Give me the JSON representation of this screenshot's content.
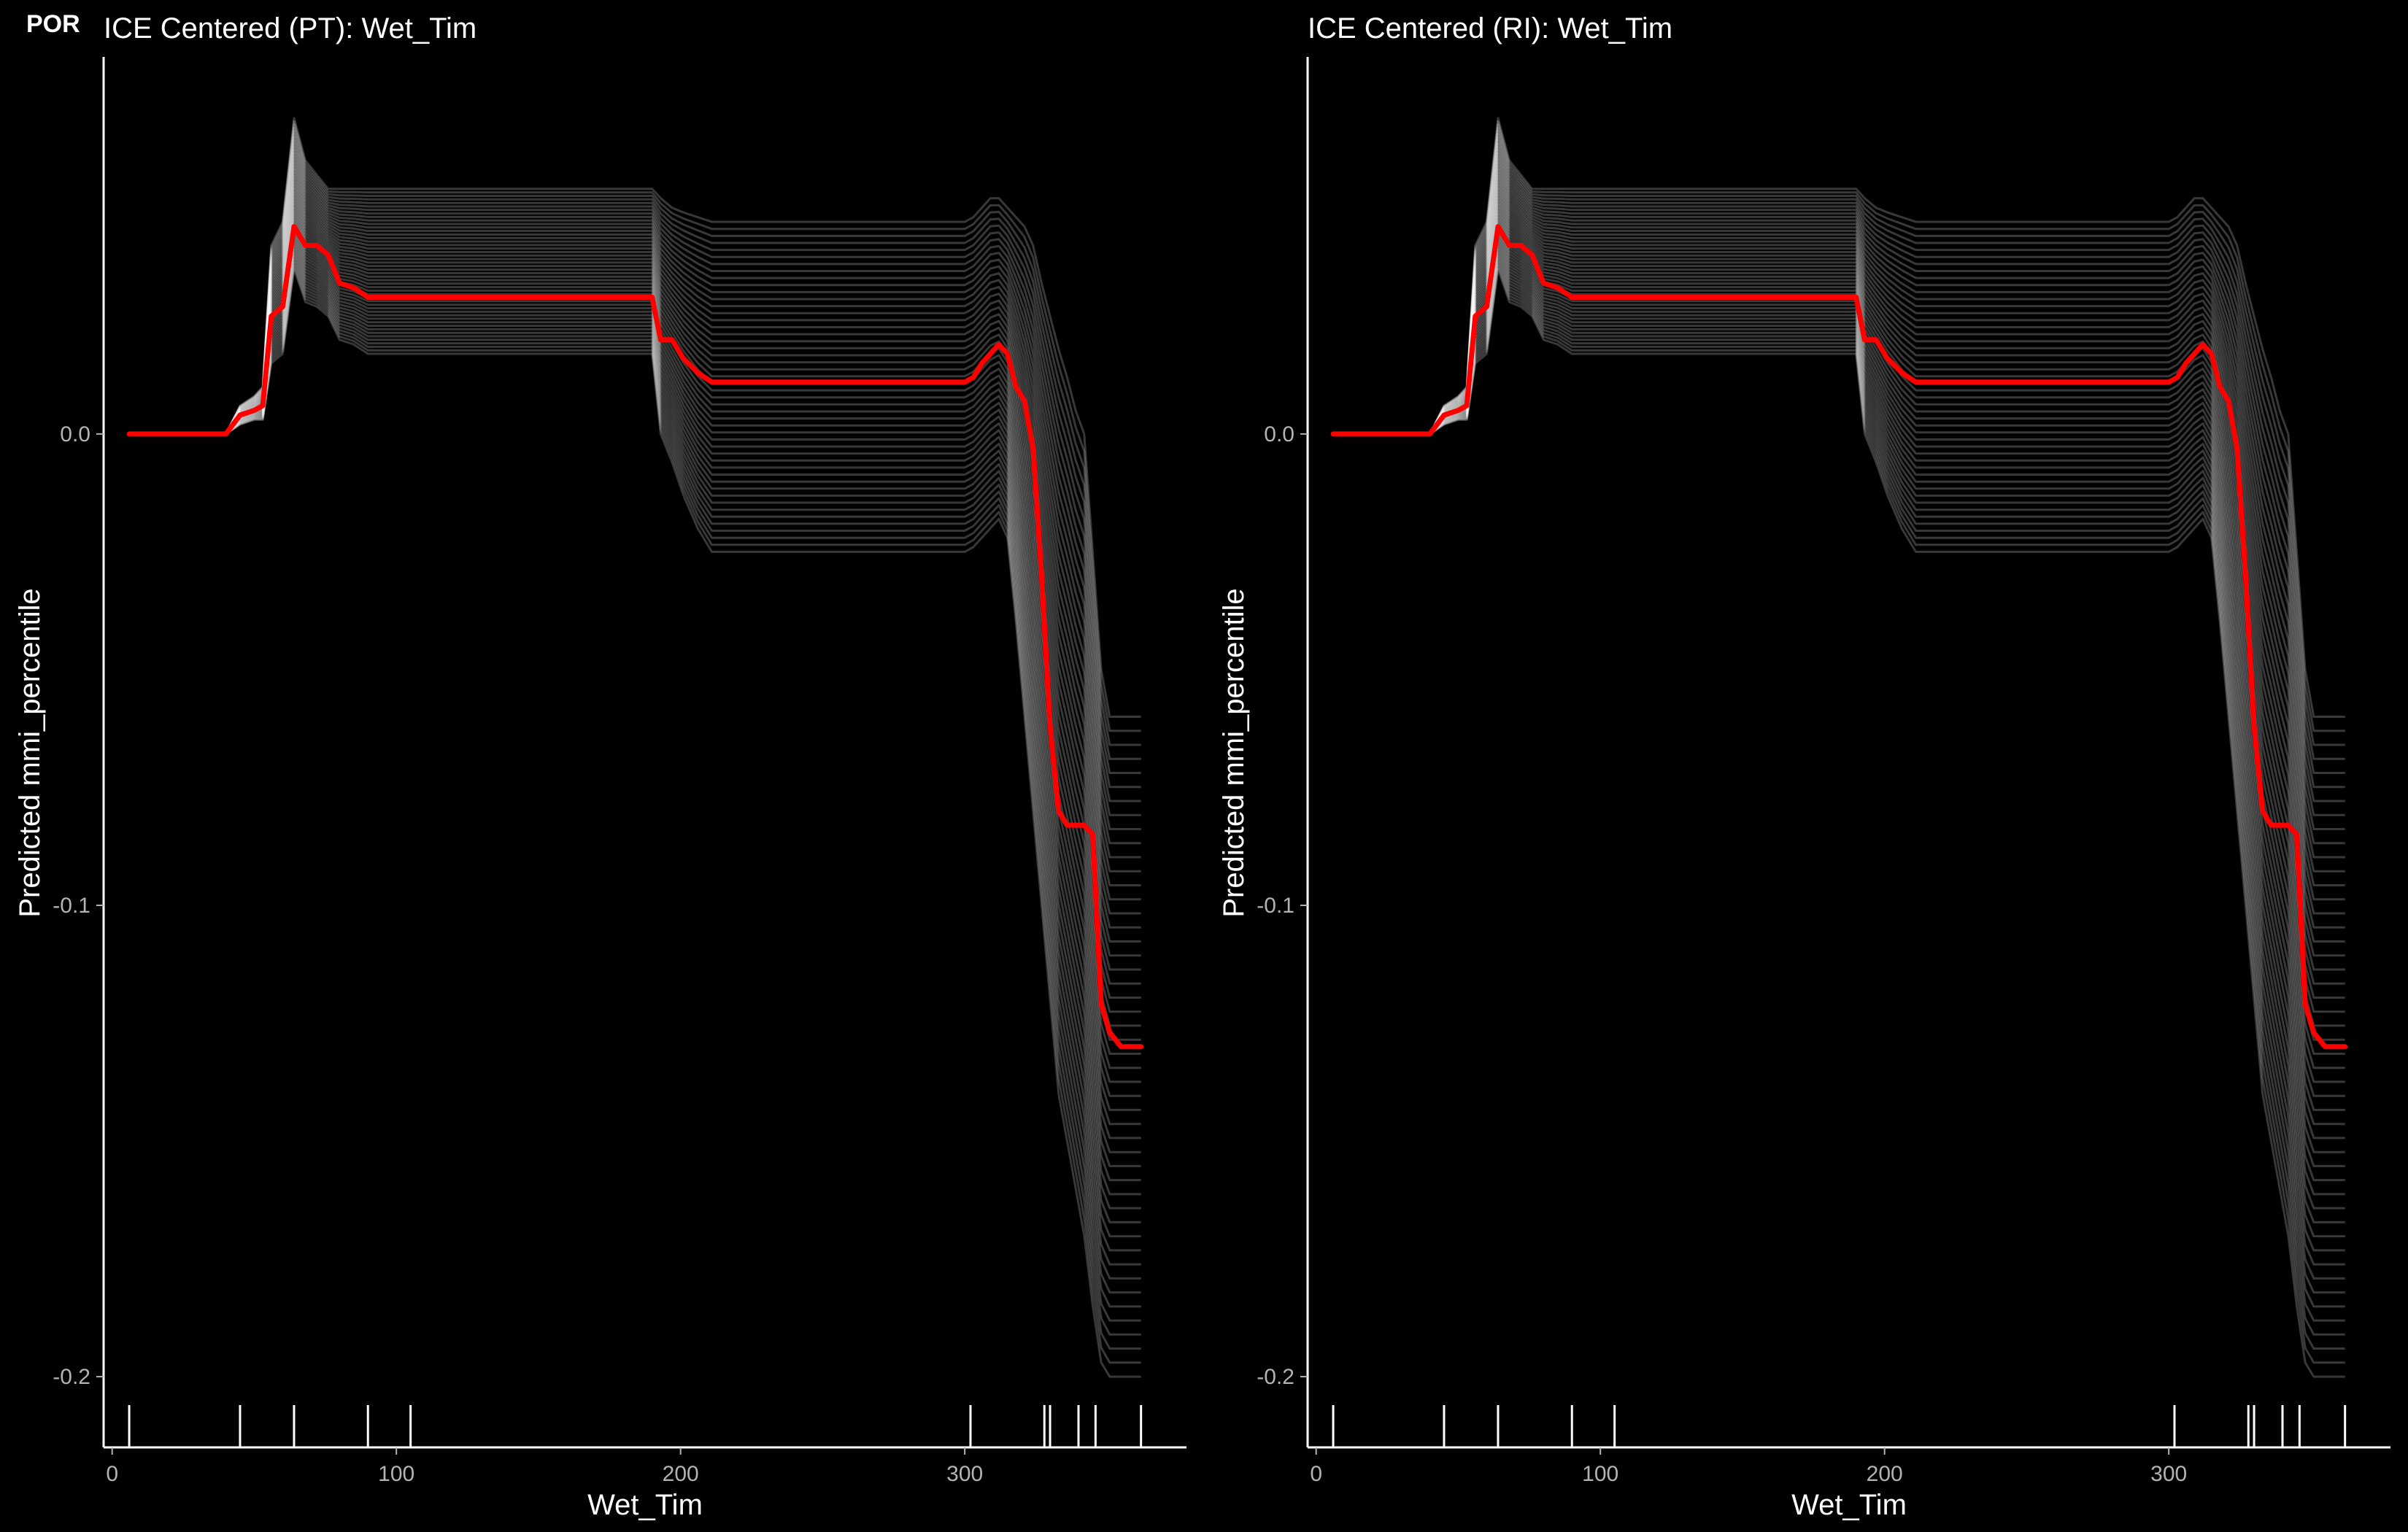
{
  "figure": {
    "tag": "POR",
    "background": "#000000",
    "ice_color": "#ffffff",
    "pdp_color": "#ff0000",
    "axis_color": "#ffffff"
  },
  "chart_data": [
    {
      "type": "line",
      "title": "ICE Centered (PT): Wet_Tim",
      "xlabel": "Wet_Tim",
      "ylabel": "Predicted mmi_percentile",
      "xlim": [
        -3,
        378
      ],
      "ylim": [
        -0.215,
        0.08
      ],
      "x_ticks": [
        0,
        100,
        200,
        300
      ],
      "x_tick_labels": [
        "0",
        "100",
        "200",
        "300"
      ],
      "y_ticks": [
        0.0,
        -0.1,
        -0.2
      ],
      "y_tick_labels": [
        "0.0",
        "-0.1",
        "-0.2"
      ],
      "grid": false,
      "legend": "none",
      "rug_x": [
        6,
        45,
        64,
        90,
        105,
        302,
        328,
        330,
        340,
        346,
        362
      ],
      "centered_pdp": {
        "x": [
          6,
          37,
          40,
          45,
          50,
          53,
          56,
          60,
          64,
          68,
          72,
          76,
          80,
          85,
          90,
          100,
          150,
          190,
          193,
          197,
          201,
          206,
          211,
          230,
          280,
          300,
          303,
          306,
          309,
          312,
          315,
          318,
          321,
          324,
          327,
          330,
          333,
          336,
          339,
          342,
          345,
          348,
          351,
          355,
          362
        ],
        "y": [
          0.0,
          0.0,
          0.0,
          0.004,
          0.005,
          0.006,
          0.025,
          0.027,
          0.044,
          0.04,
          0.04,
          0.038,
          0.032,
          0.031,
          0.029,
          0.029,
          0.029,
          0.029,
          0.02,
          0.02,
          0.016,
          0.013,
          0.011,
          0.011,
          0.011,
          0.011,
          0.012,
          0.015,
          0.017,
          0.019,
          0.017,
          0.01,
          0.007,
          -0.003,
          -0.03,
          -0.062,
          -0.08,
          -0.083,
          -0.083,
          -0.083,
          -0.085,
          -0.121,
          -0.127,
          -0.13,
          -0.13
        ]
      },
      "ice_envelope": {
        "x": [
          6,
          37,
          40,
          45,
          50,
          53,
          56,
          60,
          64,
          68,
          72,
          76,
          80,
          85,
          90,
          100,
          150,
          190,
          193,
          197,
          201,
          206,
          211,
          230,
          280,
          300,
          303,
          306,
          309,
          312,
          315,
          318,
          321,
          324,
          327,
          330,
          333,
          336,
          339,
          342,
          345,
          348,
          351,
          355,
          362
        ],
        "y_max": [
          0.0,
          0.0,
          0.0,
          0.006,
          0.008,
          0.01,
          0.04,
          0.045,
          0.067,
          0.058,
          0.055,
          0.052,
          0.052,
          0.052,
          0.052,
          0.052,
          0.052,
          0.052,
          0.05,
          0.048,
          0.047,
          0.046,
          0.045,
          0.045,
          0.045,
          0.045,
          0.046,
          0.048,
          0.05,
          0.05,
          0.048,
          0.046,
          0.044,
          0.04,
          0.032,
          0.025,
          0.018,
          0.012,
          0.005,
          0.0,
          -0.025,
          -0.05,
          -0.06,
          -0.06,
          -0.06
        ],
        "y_min": [
          0.0,
          0.0,
          0.0,
          0.002,
          0.003,
          0.003,
          0.015,
          0.017,
          0.035,
          0.028,
          0.027,
          0.025,
          0.02,
          0.019,
          0.017,
          0.017,
          0.017,
          0.017,
          0.0,
          -0.006,
          -0.013,
          -0.02,
          -0.025,
          -0.025,
          -0.025,
          -0.025,
          -0.024,
          -0.022,
          -0.02,
          -0.018,
          -0.022,
          -0.04,
          -0.06,
          -0.08,
          -0.1,
          -0.12,
          -0.14,
          -0.15,
          -0.16,
          -0.17,
          -0.185,
          -0.197,
          -0.2,
          -0.2,
          -0.2
        ]
      }
    },
    {
      "type": "line",
      "title": "ICE Centered (RI): Wet_Tim",
      "xlabel": "Wet_Tim",
      "ylabel": "Predicted mmi_percentile",
      "xlim": [
        -3,
        378
      ],
      "ylim": [
        -0.215,
        0.08
      ],
      "x_ticks": [
        0,
        100,
        200,
        300
      ],
      "x_tick_labels": [
        "0",
        "100",
        "200",
        "300"
      ],
      "y_ticks": [
        0.0,
        -0.1,
        -0.2
      ],
      "y_tick_labels": [
        "0.0",
        "-0.1",
        "-0.2"
      ],
      "grid": false,
      "legend": "none",
      "rug_x": [
        6,
        45,
        64,
        90,
        105,
        302,
        328,
        330,
        340,
        346,
        362
      ],
      "centered_pdp": {
        "x": [
          6,
          37,
          40,
          45,
          50,
          53,
          56,
          60,
          64,
          68,
          72,
          76,
          80,
          85,
          90,
          100,
          150,
          190,
          193,
          197,
          201,
          206,
          211,
          230,
          280,
          300,
          303,
          306,
          309,
          312,
          315,
          318,
          321,
          324,
          327,
          330,
          333,
          336,
          339,
          342,
          345,
          348,
          351,
          355,
          362
        ],
        "y": [
          0.0,
          0.0,
          0.0,
          0.004,
          0.005,
          0.006,
          0.025,
          0.027,
          0.044,
          0.04,
          0.04,
          0.038,
          0.032,
          0.031,
          0.029,
          0.029,
          0.029,
          0.029,
          0.02,
          0.02,
          0.016,
          0.013,
          0.011,
          0.011,
          0.011,
          0.011,
          0.012,
          0.015,
          0.017,
          0.019,
          0.017,
          0.01,
          0.007,
          -0.003,
          -0.03,
          -0.062,
          -0.08,
          -0.083,
          -0.083,
          -0.083,
          -0.085,
          -0.121,
          -0.127,
          -0.13,
          -0.13
        ]
      },
      "ice_envelope": {
        "x": [
          6,
          37,
          40,
          45,
          50,
          53,
          56,
          60,
          64,
          68,
          72,
          76,
          80,
          85,
          90,
          100,
          150,
          190,
          193,
          197,
          201,
          206,
          211,
          230,
          280,
          300,
          303,
          306,
          309,
          312,
          315,
          318,
          321,
          324,
          327,
          330,
          333,
          336,
          339,
          342,
          345,
          348,
          351,
          355,
          362
        ],
        "y_max": [
          0.0,
          0.0,
          0.0,
          0.006,
          0.008,
          0.01,
          0.04,
          0.045,
          0.067,
          0.058,
          0.055,
          0.052,
          0.052,
          0.052,
          0.052,
          0.052,
          0.052,
          0.052,
          0.05,
          0.048,
          0.047,
          0.046,
          0.045,
          0.045,
          0.045,
          0.045,
          0.046,
          0.048,
          0.05,
          0.05,
          0.048,
          0.046,
          0.044,
          0.04,
          0.032,
          0.025,
          0.018,
          0.012,
          0.005,
          0.0,
          -0.025,
          -0.05,
          -0.06,
          -0.06,
          -0.06
        ],
        "y_min": [
          0.0,
          0.0,
          0.0,
          0.002,
          0.003,
          0.003,
          0.015,
          0.017,
          0.035,
          0.028,
          0.027,
          0.025,
          0.02,
          0.019,
          0.017,
          0.017,
          0.017,
          0.017,
          0.0,
          -0.006,
          -0.013,
          -0.02,
          -0.025,
          -0.025,
          -0.025,
          -0.025,
          -0.024,
          -0.022,
          -0.02,
          -0.018,
          -0.022,
          -0.04,
          -0.06,
          -0.08,
          -0.1,
          -0.12,
          -0.14,
          -0.15,
          -0.16,
          -0.17,
          -0.185,
          -0.197,
          -0.2,
          -0.2,
          -0.2
        ]
      }
    }
  ]
}
